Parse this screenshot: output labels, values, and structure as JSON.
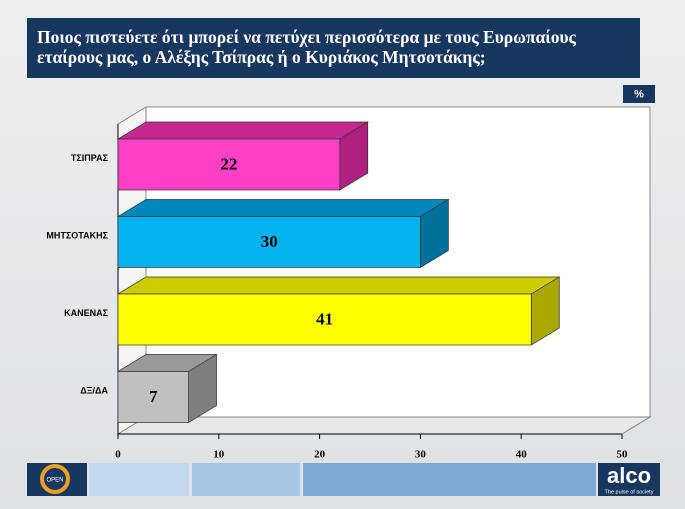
{
  "chart_data": {
    "type": "bar3d",
    "title": "Ποιος πιστεύετε ότι μπορεί να πετύχει περισσότερα με τους Ευρωπαίους εταίρους μας, ο Αλέξης Τσίπρας ή ο Κυριάκος Μητσοτάκης;",
    "unit_label": "%",
    "categories": [
      "ΤΣΙΠΡΑΣ",
      "ΜΗΤΣΟΤΑΚΗΣ",
      "ΚΑΝΕΝΑΣ",
      "ΔΞ/ΔΑ"
    ],
    "values": [
      22,
      30,
      41,
      7
    ],
    "colors": [
      "#ff3fc6",
      "#00b2ee",
      "#ffff00",
      "#c0c0c0"
    ],
    "side_colors": [
      "#b0207e",
      "#00719a",
      "#a8a800",
      "#7f7f7f"
    ],
    "top_colors": [
      "#c4288f",
      "#0088bd",
      "#cccc00",
      "#9a9a9a"
    ],
    "xlim": [
      0,
      50
    ],
    "xticks": [
      0,
      10,
      20,
      30,
      40,
      50
    ],
    "grid": false
  },
  "footer": {
    "left_logo": "OPEN",
    "right_logo": "alco",
    "right_tagline": "The pulse of society"
  }
}
